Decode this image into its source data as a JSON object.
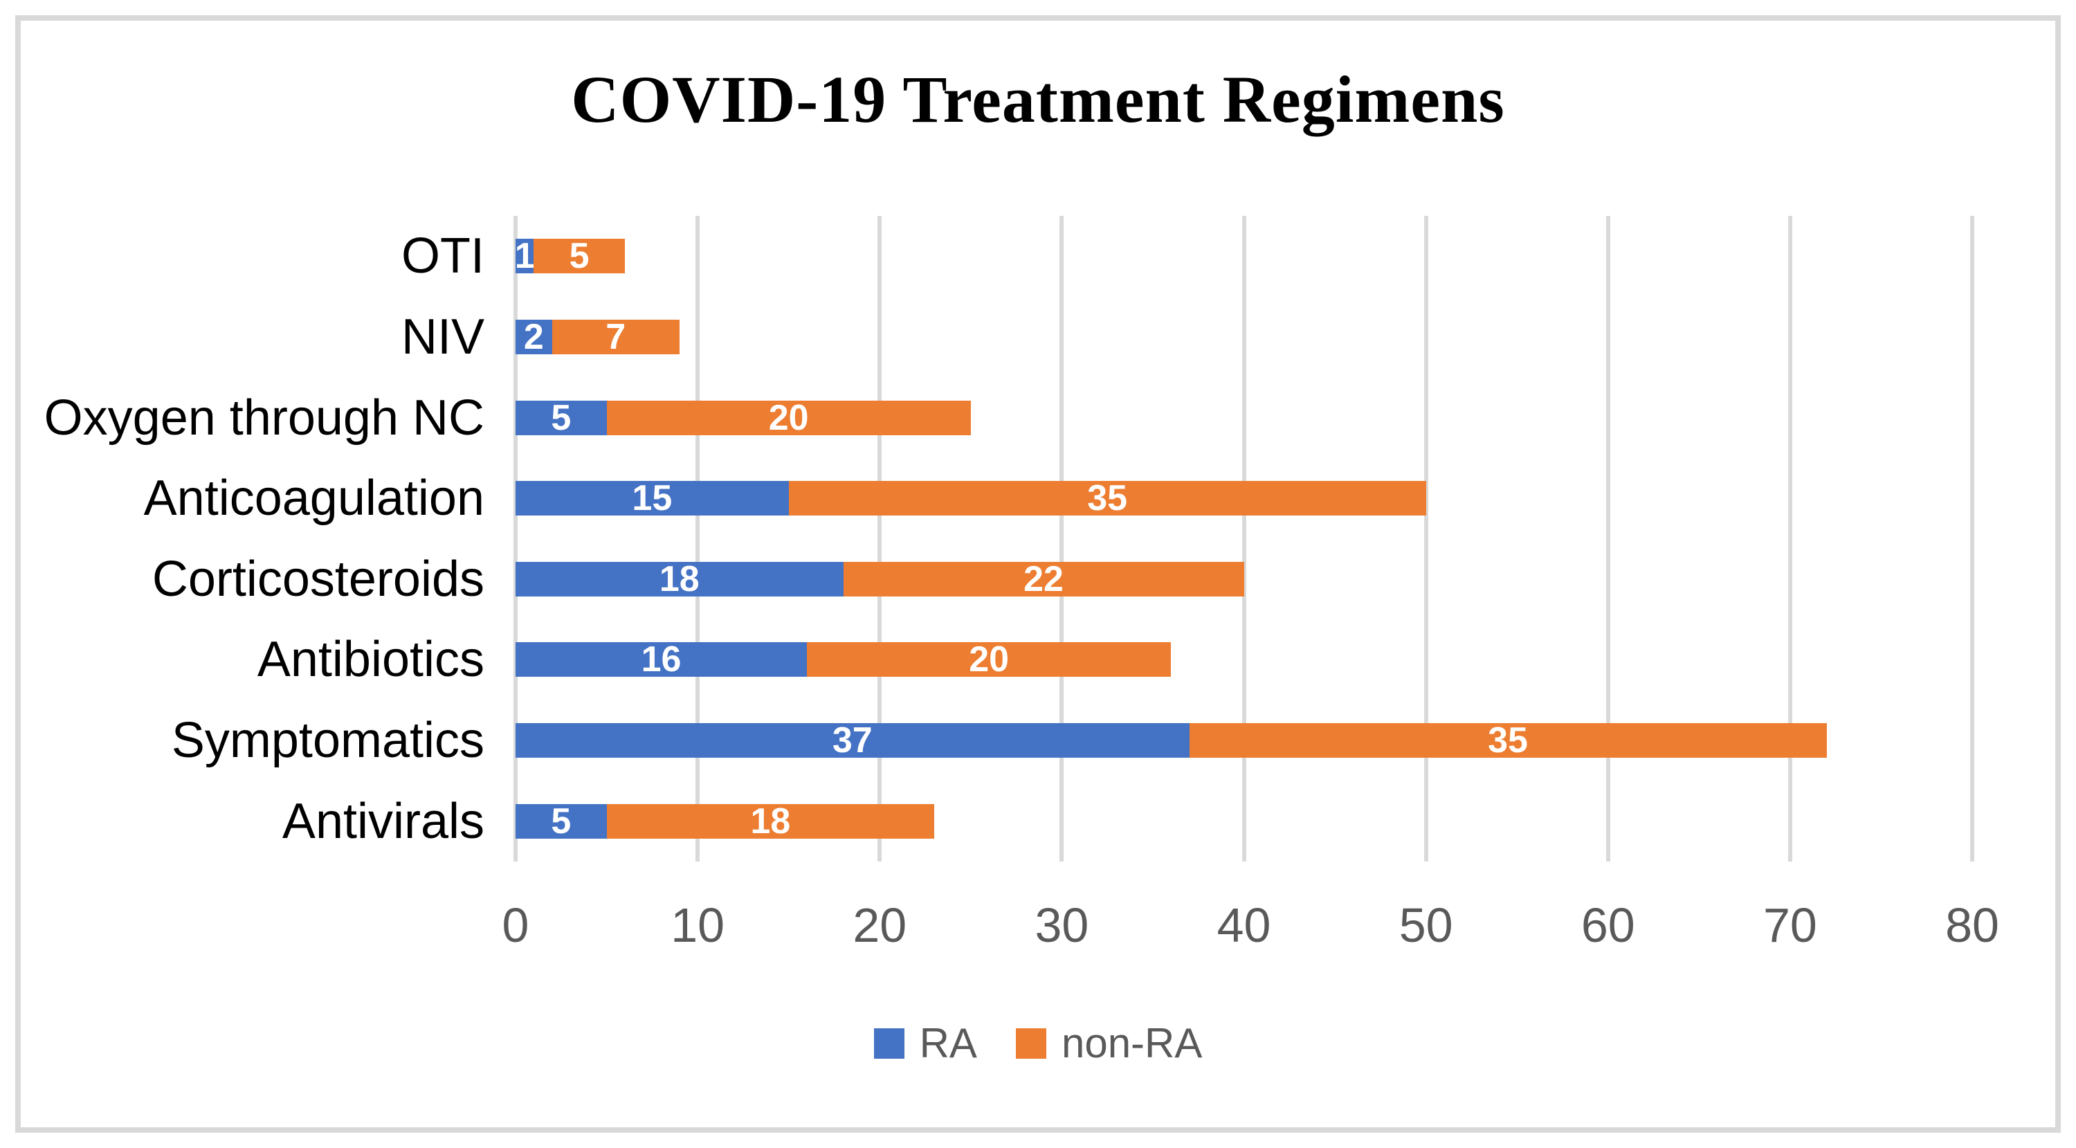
{
  "chart_data": {
    "type": "bar",
    "orientation": "horizontal",
    "stacked": true,
    "title": "COVID-19 Treatment Regimens",
    "xlabel": "",
    "ylabel": "",
    "categories": [
      "OTI",
      "NIV",
      "Oxygen through NC",
      "Anticoagulation",
      "Corticosteroids",
      "Antibiotics",
      "Symptomatics",
      "Antivirals"
    ],
    "series": [
      {
        "name": "RA",
        "color": "#4472C4",
        "values": [
          1,
          2,
          5,
          15,
          18,
          16,
          37,
          5
        ]
      },
      {
        "name": "non-RA",
        "color": "#ED7D31",
        "values": [
          5,
          7,
          20,
          35,
          22,
          20,
          35,
          18
        ]
      }
    ],
    "totals": [
      6,
      9,
      25,
      50,
      40,
      36,
      72,
      23
    ],
    "xlim": [
      0,
      80
    ],
    "xticks": [
      "0",
      "10",
      "20",
      "30",
      "40",
      "50",
      "60",
      "70",
      "80"
    ],
    "grid": true,
    "gridline_color": "#D9D9D9",
    "data_label_color": "#FFFFFF",
    "axis_text_color": "#595959",
    "category_text_color": "#000000",
    "legend_position": "bottom"
  },
  "legend": {
    "items": [
      {
        "label": "RA",
        "color": "#4472C4"
      },
      {
        "label": "non-RA",
        "color": "#ED7D31"
      }
    ]
  }
}
